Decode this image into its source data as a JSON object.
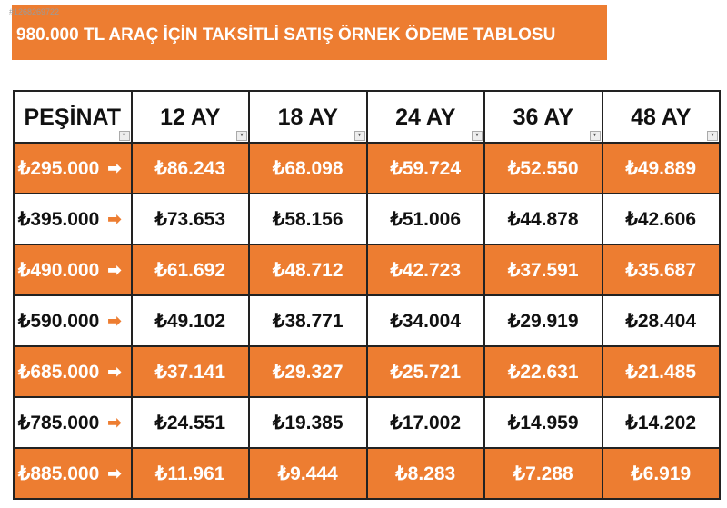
{
  "image_id": "#1268269722",
  "title": "980.000 TL ARAÇ İÇİN TAKSİTLİ SATIŞ ÖRNEK ÖDEME TABLOSU",
  "colors": {
    "accent": "#ED7D31"
  },
  "headers": [
    "PEŞİNAT",
    "12 AY",
    "18 AY",
    "24 AY",
    "36 AY",
    "48 AY"
  ],
  "rows": [
    [
      "₺295.000",
      "₺86.243",
      "₺68.098",
      "₺59.724",
      "₺52.550",
      "₺49.889"
    ],
    [
      "₺395.000",
      "₺73.653",
      "₺58.156",
      "₺51.006",
      "₺44.878",
      "₺42.606"
    ],
    [
      "₺490.000",
      "₺61.692",
      "₺48.712",
      "₺42.723",
      "₺37.591",
      "₺35.687"
    ],
    [
      "₺590.000",
      "₺49.102",
      "₺38.771",
      "₺34.004",
      "₺29.919",
      "₺28.404"
    ],
    [
      "₺685.000",
      "₺37.141",
      "₺29.327",
      "₺25.721",
      "₺22.631",
      "₺21.485"
    ],
    [
      "₺785.000",
      "₺24.551",
      "₺19.385",
      "₺17.002",
      "₺14.959",
      "₺14.202"
    ],
    [
      "₺885.000",
      "₺11.961",
      "₺9.444",
      "₺8.283",
      "₺7.288",
      "₺6.919"
    ]
  ],
  "arrow_icon": "right-arrow-icon",
  "logo_text": "TUREN"
}
